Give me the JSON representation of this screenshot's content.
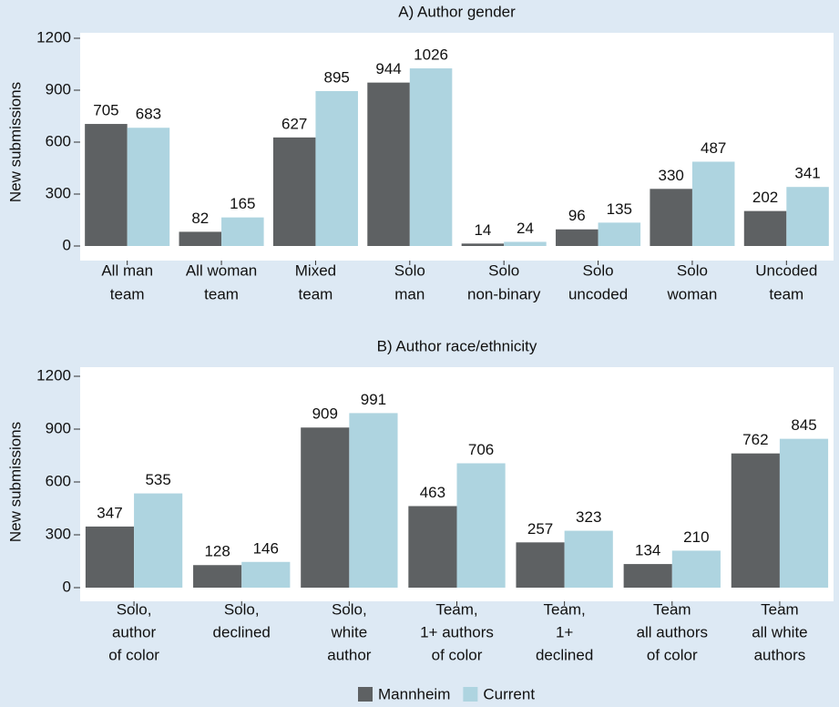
{
  "chart_data": [
    {
      "type": "bar",
      "title": "A) Author gender",
      "y_label": "New submissions",
      "categories": [
        [
          "All man",
          "team"
        ],
        [
          "All woman",
          "team"
        ],
        [
          "Mixed",
          "team"
        ],
        [
          "Solo",
          "man"
        ],
        [
          "Solo",
          "non-binary"
        ],
        [
          "Solo",
          "uncoded"
        ],
        [
          "Solo",
          "woman"
        ],
        [
          "Uncoded",
          "team"
        ]
      ],
      "series": [
        {
          "color": "#5e6163",
          "values": [
            705,
            82,
            627,
            944,
            14,
            96,
            330,
            202
          ]
        },
        {
          "color": "#aed4e0",
          "values": [
            683,
            165,
            895,
            1026,
            24,
            135,
            487,
            341
          ]
        }
      ],
      "ylim": [
        0,
        1200
      ],
      "yticks": [
        0,
        300,
        600,
        900,
        1200
      ]
    },
    {
      "type": "bar",
      "title": "B) Author race/ethnicity",
      "y_label": "New submissions",
      "categories": [
        [
          "Solo,",
          "author",
          "of color"
        ],
        [
          "Solo,",
          "declined"
        ],
        [
          "Solo,",
          "white",
          "author"
        ],
        [
          "Team,",
          "1+ authors",
          "of color"
        ],
        [
          "Team,",
          "1+",
          "declined"
        ],
        [
          "Team",
          "all authors",
          "of color"
        ],
        [
          "Team",
          "all white",
          "authors"
        ]
      ],
      "series": [
        {
          "name": "Mannheim",
          "color": "#5e6163",
          "values": [
            347,
            128,
            909,
            463,
            257,
            134,
            762
          ]
        },
        {
          "name": "Current",
          "color": "#aed4e0",
          "values": [
            535,
            146,
            991,
            706,
            323,
            210,
            845
          ]
        }
      ],
      "ylim": [
        0,
        1200
      ],
      "yticks": [
        0,
        300,
        600,
        900,
        1200
      ]
    }
  ]
}
